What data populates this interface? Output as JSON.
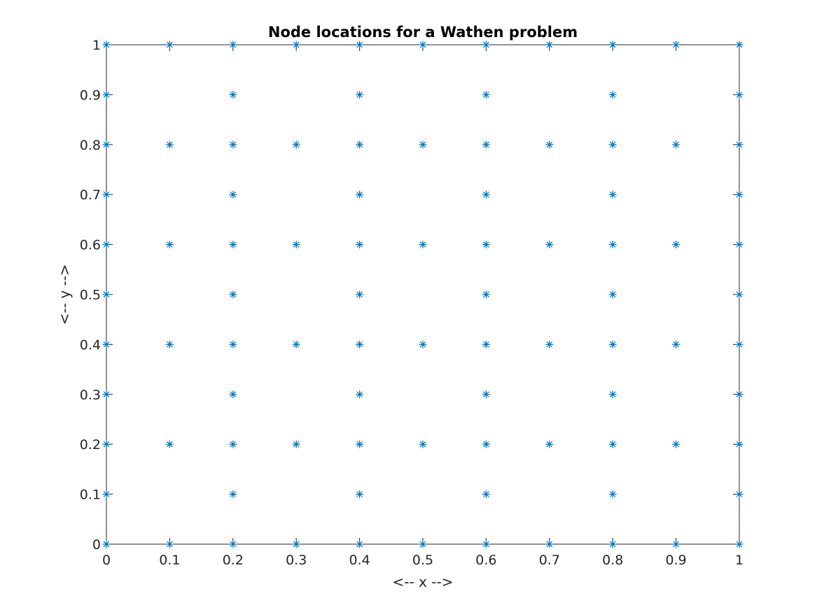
{
  "chart_data": {
    "type": "scatter",
    "title": "Node locations for a Wathen problem",
    "xlabel": "<-- x -->",
    "ylabel": "<-- y -->",
    "xlim": [
      0,
      1
    ],
    "ylim": [
      0,
      1
    ],
    "xticks": [
      0,
      0.1,
      0.2,
      0.3,
      0.4,
      0.5,
      0.6,
      0.7,
      0.8,
      0.9,
      1
    ],
    "yticks": [
      0,
      0.1,
      0.2,
      0.3,
      0.4,
      0.5,
      0.6,
      0.7,
      0.8,
      0.9,
      1
    ],
    "xtick_labels": [
      "0",
      "0.1",
      "0.2",
      "0.3",
      "0.4",
      "0.5",
      "0.6",
      "0.7",
      "0.8",
      "0.9",
      "1"
    ],
    "ytick_labels": [
      "0",
      "0.1",
      "0.2",
      "0.3",
      "0.4",
      "0.5",
      "0.6",
      "0.7",
      "0.8",
      "0.9",
      "1"
    ],
    "grid": false,
    "marker": "asterisk",
    "marker_color": "#0072BD",
    "series": [
      {
        "points": [
          [
            0,
            0
          ],
          [
            0.1,
            0
          ],
          [
            0.2,
            0
          ],
          [
            0.3,
            0
          ],
          [
            0.4,
            0
          ],
          [
            0.5,
            0
          ],
          [
            0.6,
            0
          ],
          [
            0.7,
            0
          ],
          [
            0.8,
            0
          ],
          [
            0.9,
            0
          ],
          [
            1,
            0
          ],
          [
            0,
            0.1
          ],
          [
            0.2,
            0.1
          ],
          [
            0.4,
            0.1
          ],
          [
            0.6,
            0.1
          ],
          [
            0.8,
            0.1
          ],
          [
            1,
            0.1
          ],
          [
            0,
            0.2
          ],
          [
            0.1,
            0.2
          ],
          [
            0.2,
            0.2
          ],
          [
            0.3,
            0.2
          ],
          [
            0.4,
            0.2
          ],
          [
            0.5,
            0.2
          ],
          [
            0.6,
            0.2
          ],
          [
            0.7,
            0.2
          ],
          [
            0.8,
            0.2
          ],
          [
            0.9,
            0.2
          ],
          [
            1,
            0.2
          ],
          [
            0,
            0.3
          ],
          [
            0.2,
            0.3
          ],
          [
            0.4,
            0.3
          ],
          [
            0.6,
            0.3
          ],
          [
            0.8,
            0.3
          ],
          [
            1,
            0.3
          ],
          [
            0,
            0.4
          ],
          [
            0.1,
            0.4
          ],
          [
            0.2,
            0.4
          ],
          [
            0.3,
            0.4
          ],
          [
            0.4,
            0.4
          ],
          [
            0.5,
            0.4
          ],
          [
            0.6,
            0.4
          ],
          [
            0.7,
            0.4
          ],
          [
            0.8,
            0.4
          ],
          [
            0.9,
            0.4
          ],
          [
            1,
            0.4
          ],
          [
            0,
            0.5
          ],
          [
            0.2,
            0.5
          ],
          [
            0.4,
            0.5
          ],
          [
            0.6,
            0.5
          ],
          [
            0.8,
            0.5
          ],
          [
            1,
            0.5
          ],
          [
            0,
            0.6
          ],
          [
            0.1,
            0.6
          ],
          [
            0.2,
            0.6
          ],
          [
            0.3,
            0.6
          ],
          [
            0.4,
            0.6
          ],
          [
            0.5,
            0.6
          ],
          [
            0.6,
            0.6
          ],
          [
            0.7,
            0.6
          ],
          [
            0.8,
            0.6
          ],
          [
            0.9,
            0.6
          ],
          [
            1,
            0.6
          ],
          [
            0,
            0.7
          ],
          [
            0.2,
            0.7
          ],
          [
            0.4,
            0.7
          ],
          [
            0.6,
            0.7
          ],
          [
            0.8,
            0.7
          ],
          [
            1,
            0.7
          ],
          [
            0,
            0.8
          ],
          [
            0.1,
            0.8
          ],
          [
            0.2,
            0.8
          ],
          [
            0.3,
            0.8
          ],
          [
            0.4,
            0.8
          ],
          [
            0.5,
            0.8
          ],
          [
            0.6,
            0.8
          ],
          [
            0.7,
            0.8
          ],
          [
            0.8,
            0.8
          ],
          [
            0.9,
            0.8
          ],
          [
            1,
            0.8
          ],
          [
            0,
            0.9
          ],
          [
            0.2,
            0.9
          ],
          [
            0.4,
            0.9
          ],
          [
            0.6,
            0.9
          ],
          [
            0.8,
            0.9
          ],
          [
            1,
            0.9
          ],
          [
            0,
            1
          ],
          [
            0.1,
            1
          ],
          [
            0.2,
            1
          ],
          [
            0.3,
            1
          ],
          [
            0.4,
            1
          ],
          [
            0.5,
            1
          ],
          [
            0.6,
            1
          ],
          [
            0.7,
            1
          ],
          [
            0.8,
            1
          ],
          [
            0.9,
            1
          ],
          [
            1,
            1
          ]
        ]
      }
    ]
  }
}
